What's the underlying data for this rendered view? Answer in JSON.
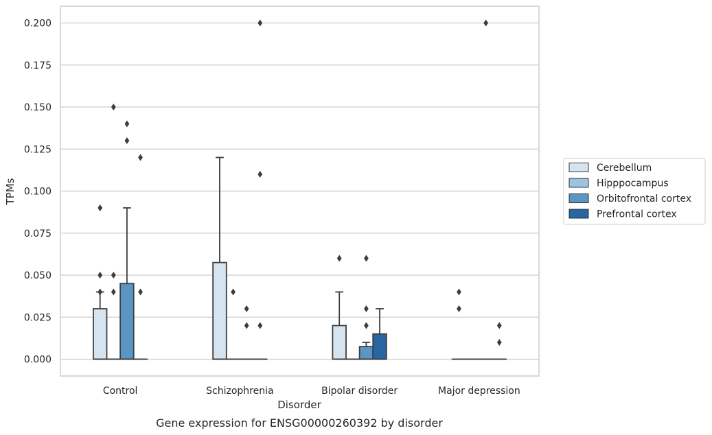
{
  "chart_data": {
    "type": "box",
    "title": "",
    "caption": "Gene expression for ENSG00000260392 by disorder",
    "xlabel": "Disorder",
    "ylabel": "TPMs",
    "ylim": [
      -0.01,
      0.21
    ],
    "yticks": [
      "0.000",
      "0.025",
      "0.050",
      "0.075",
      "0.100",
      "0.125",
      "0.150",
      "0.175",
      "0.200"
    ],
    "ytick_values": [
      0,
      0.025,
      0.05,
      0.075,
      0.1,
      0.125,
      0.15,
      0.175,
      0.2
    ],
    "grid": "horizontal",
    "legend_position": "right",
    "categories": [
      "Control",
      "Schizophrenia",
      "Bipolar disorder",
      "Major depression"
    ],
    "series": [
      {
        "name": "Cerebellum",
        "color": "#d6e4f2",
        "boxes": [
          {
            "q1": 0,
            "median": 0,
            "q3": 0.03,
            "whisker_low": 0,
            "whisker_high": 0.04,
            "outliers": [
              0.09,
              0.05,
              0.04
            ]
          },
          {
            "q1": 0,
            "median": 0,
            "q3": 0.0575,
            "whisker_low": 0,
            "whisker_high": 0.12,
            "outliers": []
          },
          {
            "q1": 0,
            "median": 0,
            "q3": 0.02,
            "whisker_low": 0,
            "whisker_high": 0.04,
            "outliers": [
              0.06
            ]
          },
          {
            "q1": 0,
            "median": 0,
            "q3": 0,
            "whisker_low": 0,
            "whisker_high": 0,
            "outliers": [
              0.04,
              0.03
            ]
          }
        ]
      },
      {
        "name": "Hipppocampus",
        "color": "#9dc4de",
        "boxes": [
          {
            "q1": 0,
            "median": 0,
            "q3": 0,
            "whisker_low": 0,
            "whisker_high": 0,
            "outliers": [
              0.15,
              0.05,
              0.04
            ]
          },
          {
            "q1": 0,
            "median": 0,
            "q3": 0,
            "whisker_low": 0,
            "whisker_high": 0,
            "outliers": [
              0.04
            ]
          },
          {
            "q1": 0,
            "median": 0,
            "q3": 0,
            "whisker_low": 0,
            "whisker_high": 0,
            "outliers": []
          },
          {
            "q1": 0,
            "median": 0,
            "q3": 0,
            "whisker_low": 0,
            "whisker_high": 0,
            "outliers": []
          }
        ]
      },
      {
        "name": "Orbitofrontal cortex",
        "color": "#5a96c3",
        "boxes": [
          {
            "q1": 0,
            "median": 0,
            "q3": 0.045,
            "whisker_low": 0,
            "whisker_high": 0.09,
            "outliers": [
              0.14,
              0.13
            ]
          },
          {
            "q1": 0,
            "median": 0,
            "q3": 0,
            "whisker_low": 0,
            "whisker_high": 0,
            "outliers": [
              0.03,
              0.02
            ]
          },
          {
            "q1": 0,
            "median": 0,
            "q3": 0.0075,
            "whisker_low": 0,
            "whisker_high": 0.01,
            "outliers": [
              0.06,
              0.03,
              0.02
            ]
          },
          {
            "q1": 0,
            "median": 0,
            "q3": 0,
            "whisker_low": 0,
            "whisker_high": 0,
            "outliers": [
              0.2
            ]
          }
        ]
      },
      {
        "name": "Prefrontal cortex",
        "color": "#2866a2",
        "boxes": [
          {
            "q1": 0,
            "median": 0,
            "q3": 0,
            "whisker_low": 0,
            "whisker_high": 0,
            "outliers": [
              0.12,
              0.04
            ]
          },
          {
            "q1": 0,
            "median": 0,
            "q3": 0,
            "whisker_low": 0,
            "whisker_high": 0,
            "outliers": [
              0.2,
              0.11,
              0.02
            ]
          },
          {
            "q1": 0,
            "median": 0,
            "q3": 0.015,
            "whisker_low": 0,
            "whisker_high": 0.03,
            "outliers": []
          },
          {
            "q1": 0,
            "median": 0,
            "q3": 0,
            "whisker_low": 0,
            "whisker_high": 0,
            "outliers": [
              0.02,
              0.01
            ]
          }
        ]
      }
    ],
    "colors": {
      "grid": "#cccccc",
      "frame": "#cccccc",
      "box_edge": "#3d3d3d",
      "outlier": "#3d3d3d"
    }
  }
}
